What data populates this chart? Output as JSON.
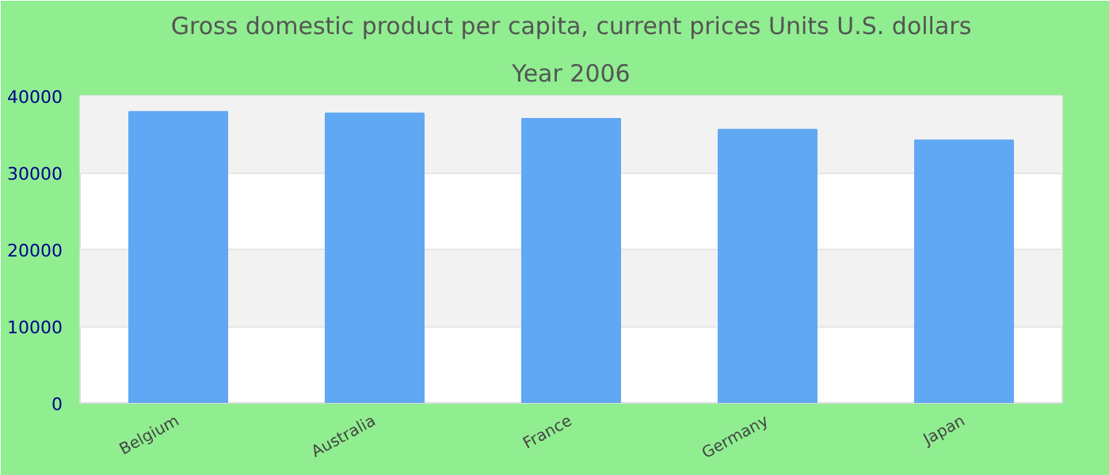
{
  "chart_data": {
    "type": "bar",
    "title": "Gross domestic product per capita, current prices Units U.S. dollars",
    "subtitle": "Year 2006",
    "categories": [
      "Belgium",
      "Australia",
      "France",
      "Germany",
      "Japan"
    ],
    "values": [
      37900,
      37700,
      37000,
      35600,
      34200
    ],
    "color": "#60a8f4",
    "ylim": [
      0,
      40000
    ],
    "yticks": [
      0,
      10000,
      20000,
      30000,
      40000
    ],
    "grid": "y"
  }
}
